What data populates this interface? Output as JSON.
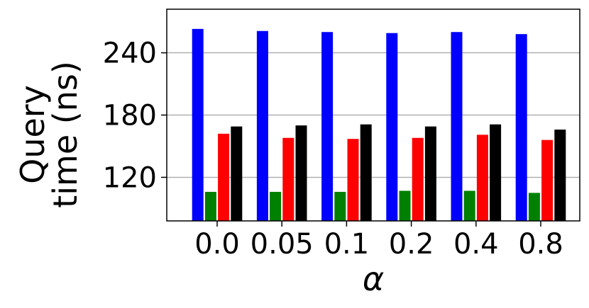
{
  "chart_data": {
    "type": "bar",
    "categories": [
      "0.0",
      "0.05",
      "0.1",
      "0.2",
      "0.4",
      "0.8"
    ],
    "series": [
      {
        "color": "#0000ff",
        "values": [
          263,
          261,
          260,
          259,
          260,
          258
        ]
      },
      {
        "color": "#008000",
        "values": [
          106,
          106,
          106,
          107,
          107,
          105
        ]
      },
      {
        "color": "#ff0000",
        "values": [
          162,
          158,
          157,
          158,
          161,
          156
        ]
      },
      {
        "color": "#000000",
        "values": [
          169,
          170,
          171,
          169,
          171,
          166
        ]
      }
    ],
    "xlabel": "α",
    "ylabel_line1": "Query",
    "ylabel_line2": "time (ns)",
    "ylim": [
      78,
      282
    ],
    "yticks": [
      120,
      180,
      240
    ],
    "grid": "horizontal"
  }
}
